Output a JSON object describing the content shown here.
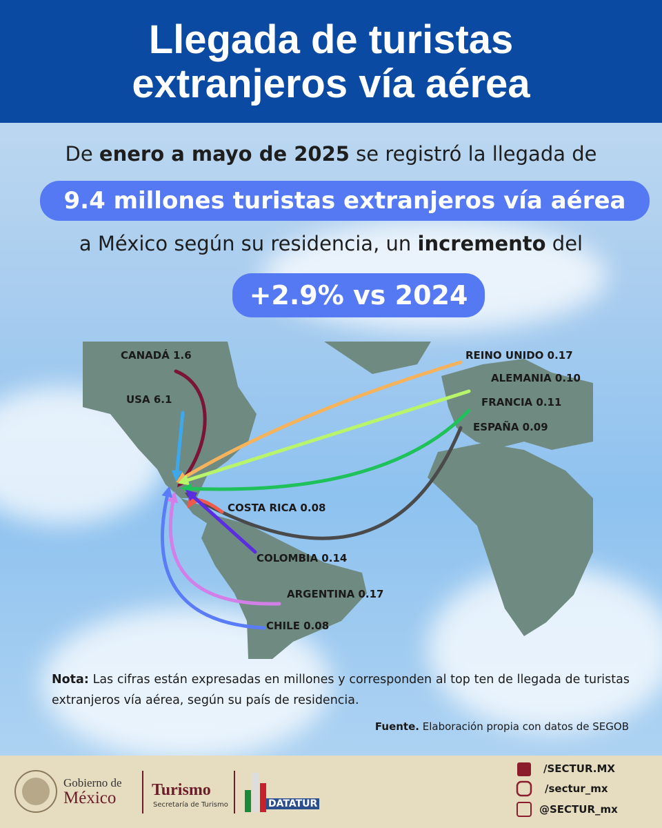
{
  "header": {
    "title_lines": [
      "Llegada de turistas",
      "extranjeros vía aérea"
    ]
  },
  "intro": {
    "line1": {
      "pre": "De",
      "bold": "enero a mayo de 2025",
      "post": "se registró la llegada de"
    },
    "highlight": "9.4 millones turistas extranjeros vía aérea",
    "line2": {
      "pre": "a México según su residencia, un",
      "bold": "incremento",
      "post": "del"
    },
    "badge": "+2.9% vs 2024"
  },
  "map": {
    "flows": [
      {
        "label": "CANADÁ 1.6"
      },
      {
        "label": "USA 6.1"
      },
      {
        "label": "REINO UNIDO 0.17"
      },
      {
        "label": "ALEMANIA 0.10"
      },
      {
        "label": "FRANCIA 0.11"
      },
      {
        "label": "ESPAÑA 0.09"
      },
      {
        "label": "COSTA RICA 0.08"
      },
      {
        "label": "COLOMBIA 0.14"
      },
      {
        "label": "ARGENTINA 0.17"
      },
      {
        "label": "CHILE 0.08"
      }
    ]
  },
  "note": {
    "bold": "Nota:",
    "text": "Las cifras están expresadas en millones y corresponden al top ten de llegada de turistas extranjeros vía aérea, según su país de residencia."
  },
  "source": {
    "bold": "Fuente.",
    "text": "Elaboración propia con datos de SEGOB"
  },
  "footer": {
    "gob_line1": "Gobierno de",
    "gob_line2": "México",
    "turismo": "Turismo",
    "turismo_sub": "Secretaría de Turismo",
    "datatur": "DATATUR",
    "social": [
      "/SECTUR.MX",
      "/sectur_mx",
      "@SECTUR_mx"
    ]
  }
}
